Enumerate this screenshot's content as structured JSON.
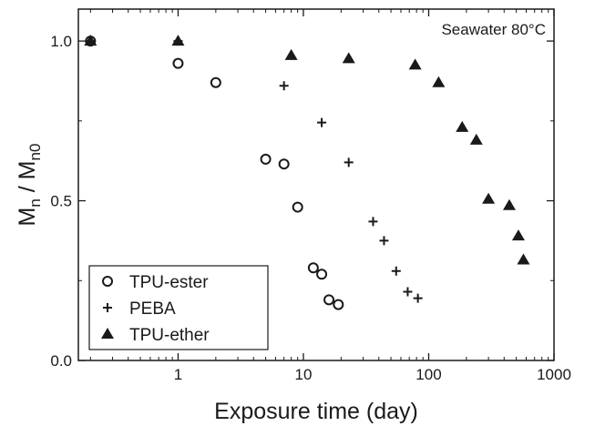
{
  "chart_data": {
    "type": "scatter",
    "title": "",
    "annotation": "Seawater 80°C",
    "xlabel": "Exposure time (day)",
    "ylabel": {
      "base": "M",
      "sub1": "n",
      "sep": " / ",
      "base2": "M",
      "sub2": "n0"
    },
    "xscale": "log",
    "xlim": [
      0.16,
      1000
    ],
    "ylim": [
      0.0,
      1.1
    ],
    "xticks": [
      {
        "value": 1,
        "label": "1"
      },
      {
        "value": 10,
        "label": "10"
      },
      {
        "value": 100,
        "label": "100"
      },
      {
        "value": 1000,
        "label": "1000"
      }
    ],
    "yticks": [
      {
        "value": 0.0,
        "label": "0.0"
      },
      {
        "value": 0.5,
        "label": "0.5"
      },
      {
        "value": 1.0,
        "label": "1.0"
      }
    ],
    "grid": false,
    "legend_position": "bottom-left",
    "series": [
      {
        "name": "TPU-ester",
        "marker": "circle",
        "x": [
          0.2,
          1,
          2,
          5,
          7,
          9,
          12,
          14,
          16,
          19
        ],
        "y": [
          1.0,
          0.93,
          0.87,
          0.63,
          0.615,
          0.48,
          0.29,
          0.27,
          0.19,
          0.175
        ]
      },
      {
        "name": "PEBA",
        "marker": "plus",
        "x": [
          0.2,
          1,
          7,
          14,
          23,
          36,
          44,
          55,
          68,
          82
        ],
        "y": [
          1.0,
          1.0,
          0.86,
          0.745,
          0.62,
          0.435,
          0.375,
          0.28,
          0.215,
          0.195
        ]
      },
      {
        "name": "TPU-ether",
        "marker": "triangle",
        "x": [
          0.2,
          1,
          8,
          23,
          78,
          120,
          185,
          240,
          300,
          440,
          520,
          570
        ],
        "y": [
          1.0,
          1.0,
          0.955,
          0.945,
          0.925,
          0.87,
          0.73,
          0.69,
          0.505,
          0.485,
          0.39,
          0.315
        ]
      }
    ]
  }
}
